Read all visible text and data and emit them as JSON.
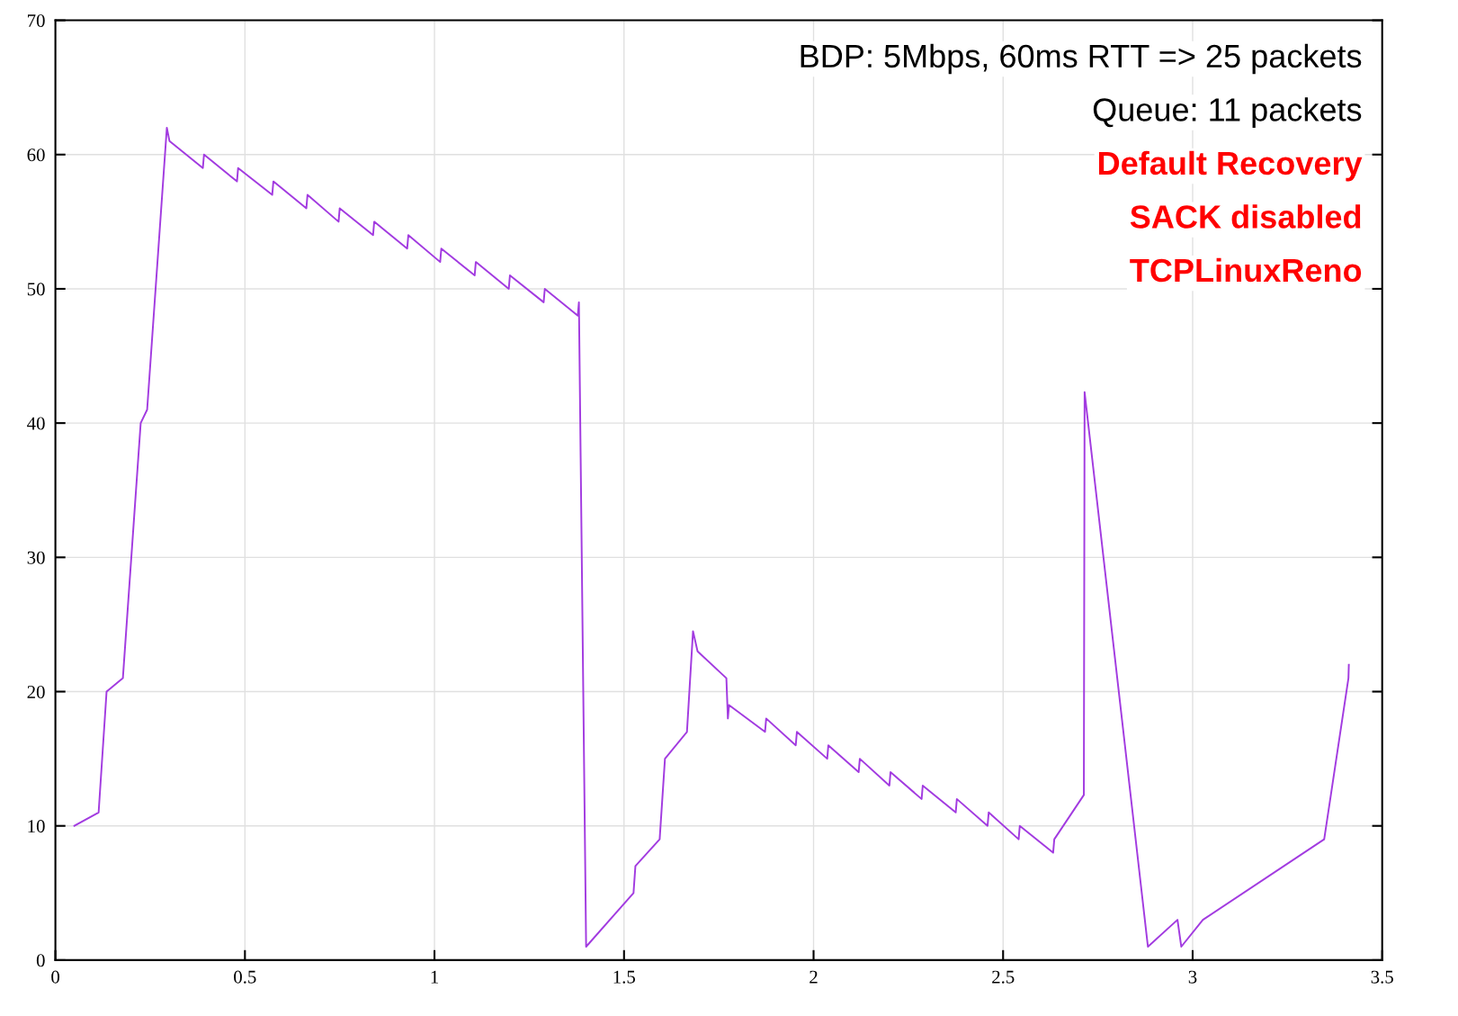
{
  "chart_data": {
    "type": "line",
    "xlim": [
      0,
      3.5
    ],
    "xticks": [
      0,
      0.5,
      1,
      1.5,
      2,
      2.5,
      3,
      3.5
    ],
    "ylim": [
      0,
      70
    ],
    "yticks": [
      0,
      10,
      20,
      30,
      40,
      50,
      60,
      70
    ],
    "grid": true,
    "annotations": [
      "BDP: 5Mbps, 60ms RTT => 25 packets",
      "Queue: 11 packets",
      "Default Recovery",
      "SACK disabled",
      "TCPLinuxReno"
    ],
    "series": [
      {
        "color": "#a23be0",
        "x": [
          0.05,
          0.114,
          0.135,
          0.178,
          0.225,
          0.242,
          0.294,
          0.301,
          0.389,
          0.392,
          0.479,
          0.482,
          0.572,
          0.575,
          0.662,
          0.665,
          0.747,
          0.75,
          0.838,
          0.841,
          0.928,
          0.931,
          1.015,
          1.018,
          1.106,
          1.109,
          1.196,
          1.199,
          1.288,
          1.291,
          1.378,
          1.381,
          1.4,
          1.525,
          1.53,
          1.594,
          1.608,
          1.666,
          1.682,
          1.694,
          1.77,
          1.774,
          1.777,
          1.872,
          1.875,
          1.953,
          1.956,
          2.036,
          2.039,
          2.119,
          2.122,
          2.2,
          2.203,
          2.285,
          2.288,
          2.375,
          2.378,
          2.459,
          2.462,
          2.541,
          2.544,
          2.632,
          2.635,
          2.713,
          2.715,
          2.882,
          2.96,
          2.97,
          3.027,
          3.347,
          3.411,
          3.412
        ],
        "values": [
          10,
          11,
          20,
          21,
          40,
          41,
          62,
          61,
          59,
          60,
          58,
          59,
          57,
          58,
          56,
          57,
          55,
          56,
          54,
          55,
          53,
          54,
          52,
          53,
          51,
          52,
          50,
          51,
          49,
          50,
          48,
          49,
          1,
          5,
          7,
          9,
          15,
          17,
          24.5,
          23,
          21,
          18,
          19,
          17,
          18,
          16,
          17,
          15,
          16,
          14,
          15,
          13,
          14,
          12,
          13,
          11,
          12,
          10,
          11,
          9,
          10,
          8,
          9,
          12.3,
          42.3,
          1,
          3,
          1,
          3,
          9,
          21,
          22
        ]
      }
    ]
  }
}
